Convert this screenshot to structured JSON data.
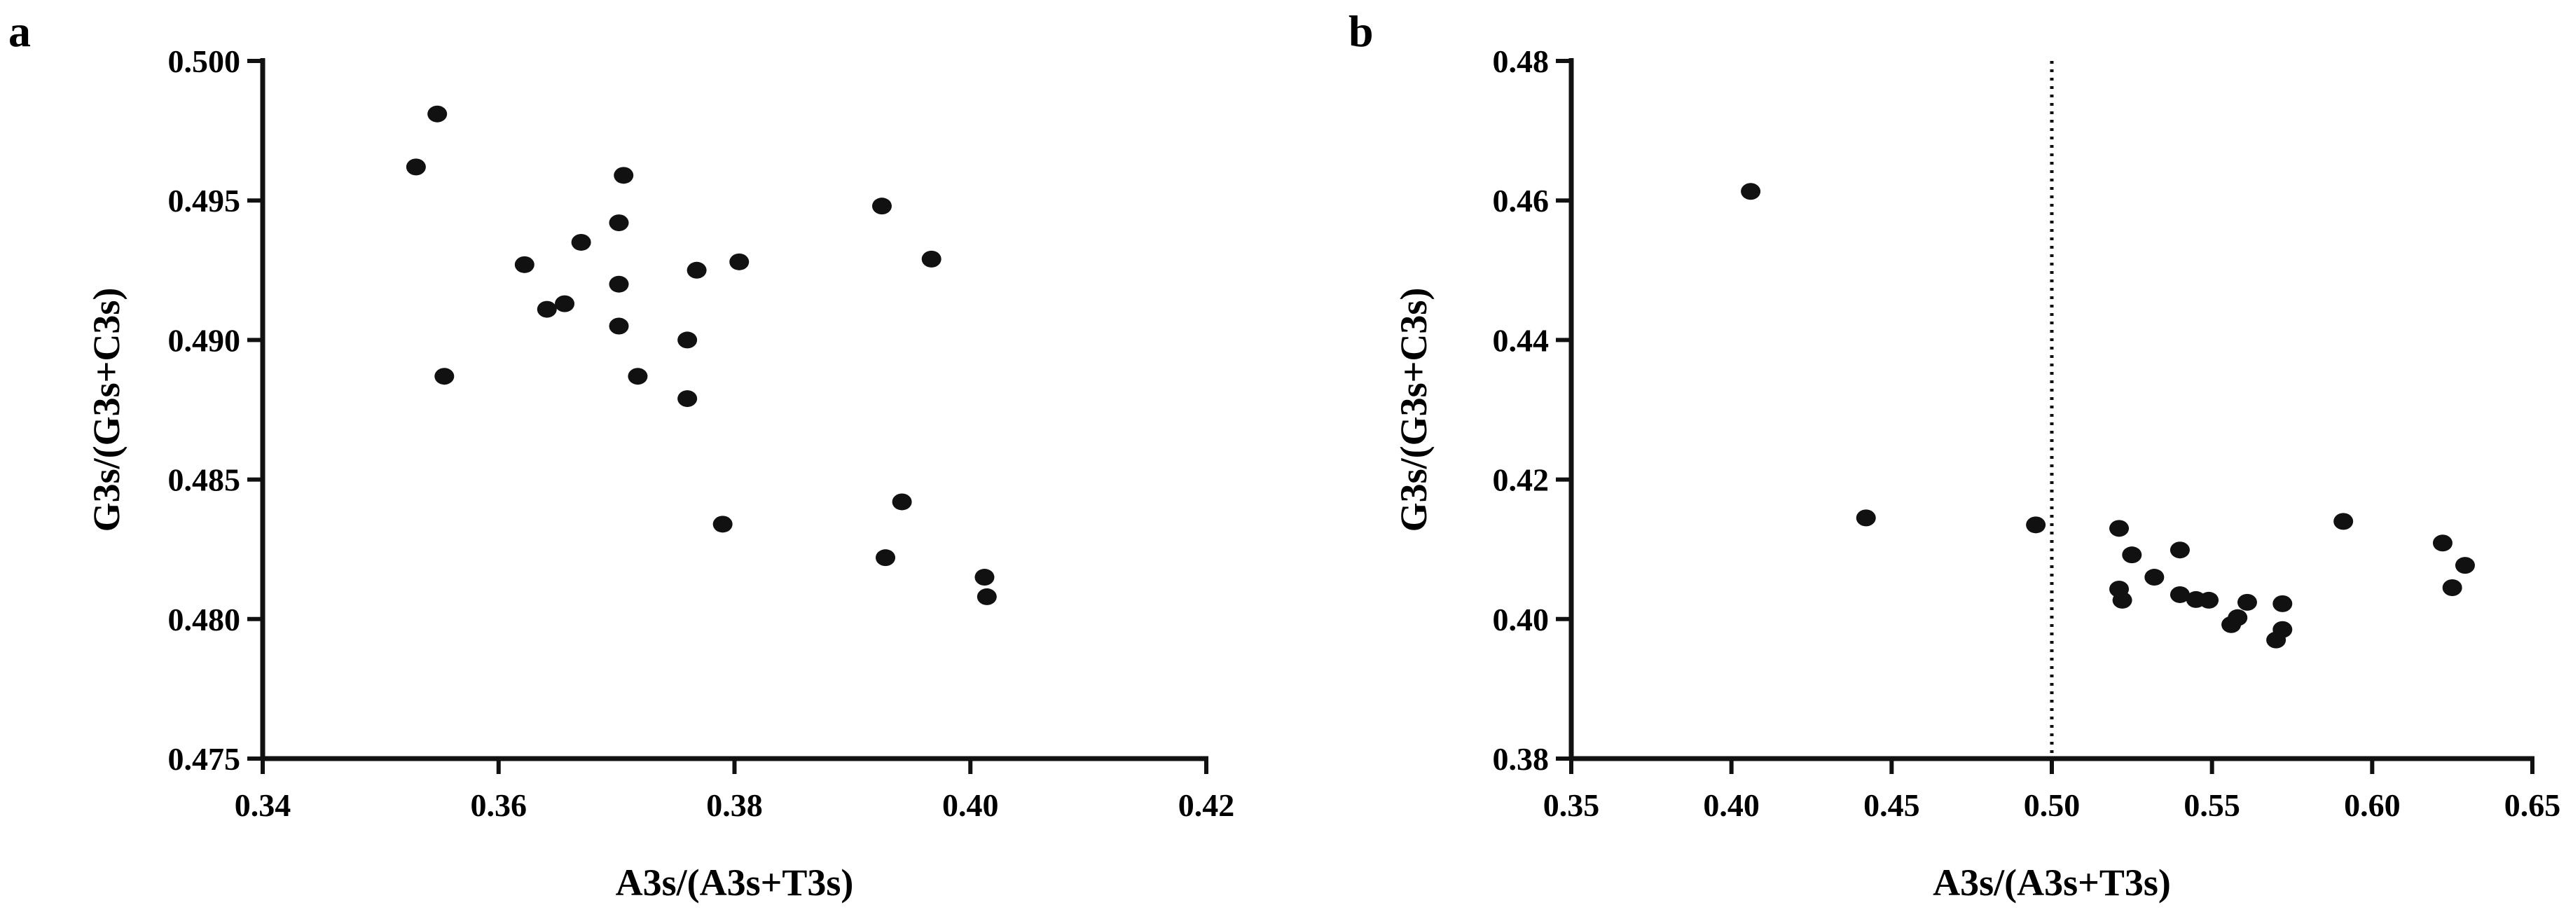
{
  "chart_data": [
    {
      "type": "scatter",
      "panel_label": "a",
      "xlabel": "A3s/(A3s+T3s)",
      "ylabel": "G3s/(G3s+C3s)",
      "xlim": [
        0.34,
        0.42
      ],
      "ylim": [
        0.475,
        0.5
      ],
      "xticks": [
        0.34,
        0.36,
        0.38,
        0.4,
        0.42
      ],
      "xtick_labels": [
        "0.34",
        "0.36",
        "0.38",
        "0.40",
        "0.42"
      ],
      "yticks": [
        0.475,
        0.48,
        0.485,
        0.49,
        0.495,
        0.5
      ],
      "ytick_labels": [
        "0.475",
        "0.480",
        "0.485",
        "0.490",
        "0.495",
        "0.500"
      ],
      "grid": false,
      "points": [
        {
          "x": 0.353,
          "y": 0.4962
        },
        {
          "x": 0.3548,
          "y": 0.4981
        },
        {
          "x": 0.3554,
          "y": 0.4887
        },
        {
          "x": 0.3622,
          "y": 0.4927
        },
        {
          "x": 0.3641,
          "y": 0.4911
        },
        {
          "x": 0.3656,
          "y": 0.4913
        },
        {
          "x": 0.367,
          "y": 0.4935
        },
        {
          "x": 0.3702,
          "y": 0.4942
        },
        {
          "x": 0.3702,
          "y": 0.492
        },
        {
          "x": 0.3702,
          "y": 0.4905
        },
        {
          "x": 0.3706,
          "y": 0.4959
        },
        {
          "x": 0.3718,
          "y": 0.4887
        },
        {
          "x": 0.376,
          "y": 0.49
        },
        {
          "x": 0.376,
          "y": 0.4879
        },
        {
          "x": 0.3768,
          "y": 0.4925
        },
        {
          "x": 0.379,
          "y": 0.4834
        },
        {
          "x": 0.3804,
          "y": 0.4928
        },
        {
          "x": 0.3925,
          "y": 0.4948
        },
        {
          "x": 0.3928,
          "y": 0.4822
        },
        {
          "x": 0.3942,
          "y": 0.4842
        },
        {
          "x": 0.3967,
          "y": 0.4929
        },
        {
          "x": 0.4012,
          "y": 0.4815
        },
        {
          "x": 0.4014,
          "y": 0.4808
        }
      ]
    },
    {
      "type": "scatter",
      "panel_label": "b",
      "xlabel": "A3s/(A3s+T3s)",
      "ylabel": "G3s/(G3s+C3s)",
      "xlim": [
        0.35,
        0.65
      ],
      "ylim": [
        0.38,
        0.48
      ],
      "xticks": [
        0.35,
        0.4,
        0.45,
        0.5,
        0.55,
        0.6,
        0.65
      ],
      "xtick_labels": [
        "0.35",
        "0.40",
        "0.45",
        "0.50",
        "0.55",
        "0.60",
        "0.65"
      ],
      "yticks": [
        0.38,
        0.4,
        0.42,
        0.44,
        0.46,
        0.48
      ],
      "ytick_labels": [
        "0.38",
        "0.40",
        "0.42",
        "0.44",
        "0.46",
        "0.48"
      ],
      "grid": false,
      "reference_line_x": 0.5,
      "points": [
        {
          "x": 0.406,
          "y": 0.4613
        },
        {
          "x": 0.442,
          "y": 0.4145
        },
        {
          "x": 0.495,
          "y": 0.4135
        },
        {
          "x": 0.521,
          "y": 0.413
        },
        {
          "x": 0.521,
          "y": 0.4043
        },
        {
          "x": 0.522,
          "y": 0.4027
        },
        {
          "x": 0.525,
          "y": 0.4092
        },
        {
          "x": 0.532,
          "y": 0.406
        },
        {
          "x": 0.54,
          "y": 0.4099
        },
        {
          "x": 0.54,
          "y": 0.4035
        },
        {
          "x": 0.545,
          "y": 0.4028
        },
        {
          "x": 0.549,
          "y": 0.4027
        },
        {
          "x": 0.556,
          "y": 0.3992
        },
        {
          "x": 0.558,
          "y": 0.4002
        },
        {
          "x": 0.561,
          "y": 0.4024
        },
        {
          "x": 0.57,
          "y": 0.397
        },
        {
          "x": 0.572,
          "y": 0.3985
        },
        {
          "x": 0.572,
          "y": 0.4022
        },
        {
          "x": 0.591,
          "y": 0.414
        },
        {
          "x": 0.622,
          "y": 0.4109
        },
        {
          "x": 0.625,
          "y": 0.4045
        },
        {
          "x": 0.629,
          "y": 0.4077
        }
      ]
    }
  ]
}
